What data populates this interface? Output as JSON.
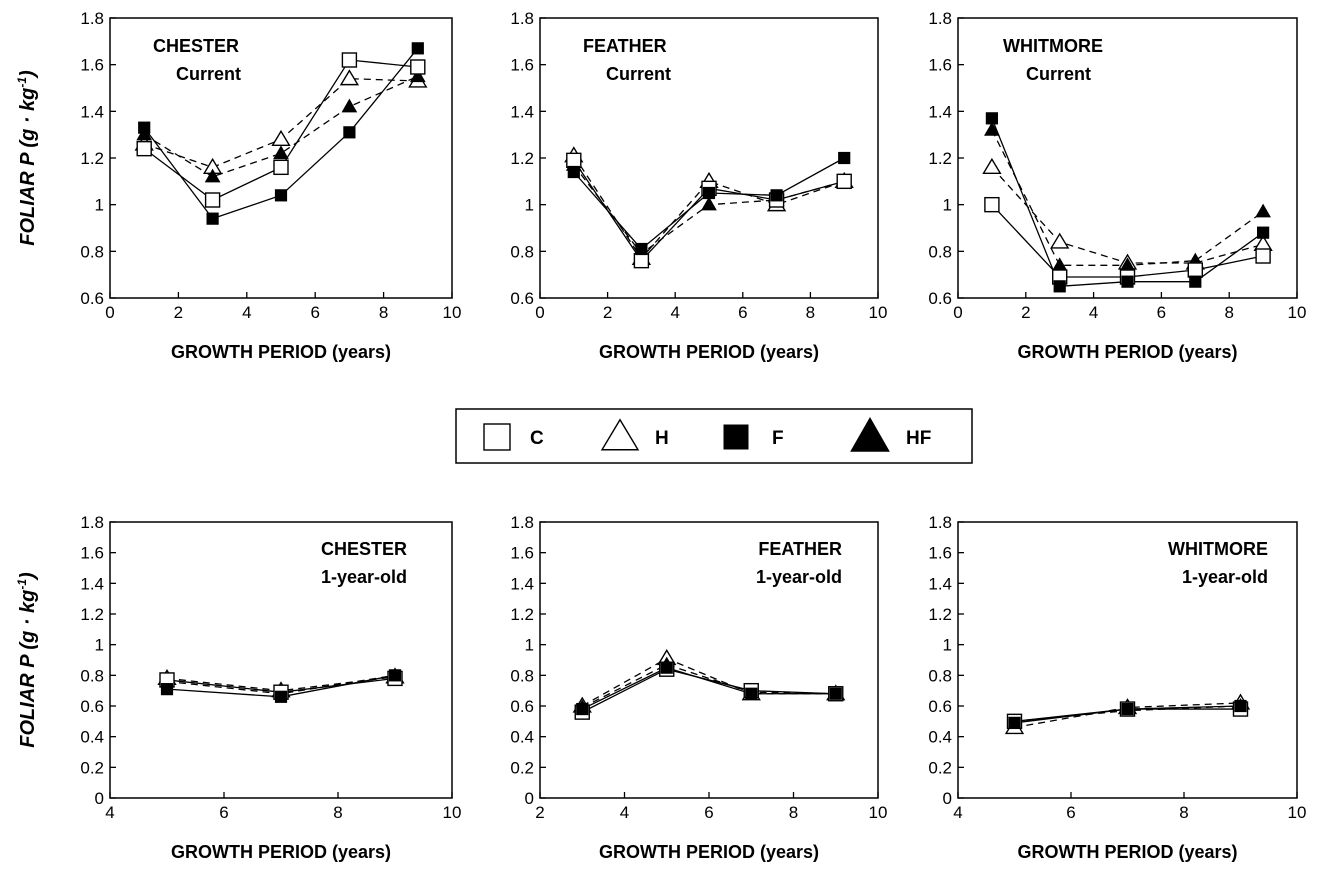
{
  "legend": {
    "entries": [
      {
        "key": "C",
        "label": "C",
        "marker": "square-open"
      },
      {
        "key": "H",
        "label": "H",
        "marker": "triangle-open"
      },
      {
        "key": "F",
        "label": "F",
        "marker": "square-filled"
      },
      {
        "key": "HF",
        "label": "HF",
        "marker": "triangle-filled"
      }
    ]
  },
  "ylabel_main": "FOLIAR P (g · kg",
  "ylabel_sup": "-1",
  "ylabel_tail": ")",
  "chart_data": [
    {
      "type": "line",
      "title": "CHESTER",
      "subtitle": "Current",
      "xlabel": "GROWTH PERIOD (years)",
      "ylabel": "FOLIAR P (g · kg-1)",
      "xlim": [
        0,
        10
      ],
      "ylim": [
        0.6,
        1.8
      ],
      "xticks": [
        0,
        2,
        4,
        6,
        8,
        10
      ],
      "yticks": [
        0.6,
        0.8,
        1,
        1.2,
        1.4,
        1.6,
        1.8
      ],
      "x": [
        1,
        3,
        5,
        7,
        9
      ],
      "series": [
        {
          "name": "C",
          "values": [
            1.24,
            1.02,
            1.16,
            1.62,
            1.59
          ]
        },
        {
          "name": "H",
          "values": [
            1.26,
            1.16,
            1.28,
            1.54,
            1.53
          ]
        },
        {
          "name": "F",
          "values": [
            1.33,
            0.94,
            1.04,
            1.31,
            1.67
          ]
        },
        {
          "name": "HF",
          "values": [
            1.3,
            1.12,
            1.22,
            1.42,
            1.55
          ]
        }
      ]
    },
    {
      "type": "line",
      "title": "FEATHER",
      "subtitle": "Current",
      "xlabel": "GROWTH PERIOD (years)",
      "ylabel": "FOLIAR P (g · kg-1)",
      "xlim": [
        0,
        10
      ],
      "ylim": [
        0.6,
        1.8
      ],
      "xticks": [
        0,
        2,
        4,
        6,
        8,
        10
      ],
      "yticks": [
        0.6,
        0.8,
        1,
        1.2,
        1.4,
        1.6,
        1.8
      ],
      "x": [
        1,
        3,
        5,
        7,
        9
      ],
      "series": [
        {
          "name": "C",
          "values": [
            1.19,
            0.76,
            1.07,
            1.02,
            1.1
          ]
        },
        {
          "name": "H",
          "values": [
            1.21,
            0.77,
            1.1,
            1.0,
            1.1
          ]
        },
        {
          "name": "F",
          "values": [
            1.14,
            0.81,
            1.05,
            1.04,
            1.2
          ]
        },
        {
          "name": "HF",
          "values": [
            1.17,
            0.79,
            1.0,
            1.02,
            1.1
          ]
        }
      ]
    },
    {
      "type": "line",
      "title": "WHITMORE",
      "subtitle": "Current",
      "xlabel": "GROWTH PERIOD (years)",
      "ylabel": "FOLIAR P (g · kg-1)",
      "xlim": [
        0,
        10
      ],
      "ylim": [
        0.6,
        1.8
      ],
      "xticks": [
        0,
        2,
        4,
        6,
        8,
        10
      ],
      "yticks": [
        0.6,
        0.8,
        1,
        1.2,
        1.4,
        1.6,
        1.8
      ],
      "x": [
        1,
        3,
        5,
        7,
        9
      ],
      "series": [
        {
          "name": "C",
          "values": [
            1.0,
            0.69,
            0.69,
            0.72,
            0.78
          ]
        },
        {
          "name": "H",
          "values": [
            1.16,
            0.84,
            0.75,
            0.75,
            0.83
          ]
        },
        {
          "name": "F",
          "values": [
            1.37,
            0.65,
            0.67,
            0.67,
            0.88
          ]
        },
        {
          "name": "HF",
          "values": [
            1.32,
            0.74,
            0.74,
            0.76,
            0.97
          ]
        }
      ]
    },
    {
      "type": "line",
      "title": "CHESTER",
      "subtitle": "1-year-old",
      "xlabel": "GROWTH PERIOD (years)",
      "ylabel": "FOLIAR P (g · kg-1)",
      "xlim": [
        4,
        10
      ],
      "ylim": [
        0,
        1.8
      ],
      "xticks": [
        4,
        6,
        8,
        10
      ],
      "yticks": [
        0,
        0.2,
        0.4,
        0.6,
        0.8,
        1,
        1.2,
        1.4,
        1.6,
        1.8
      ],
      "x": [
        5,
        7,
        9
      ],
      "series": [
        {
          "name": "C",
          "values": [
            0.77,
            0.69,
            0.78
          ]
        },
        {
          "name": "H",
          "values": [
            0.78,
            0.7,
            0.79
          ]
        },
        {
          "name": "F",
          "values": [
            0.71,
            0.66,
            0.8
          ]
        },
        {
          "name": "HF",
          "values": [
            0.76,
            0.68,
            0.8
          ]
        }
      ]
    },
    {
      "type": "line",
      "title": "FEATHER",
      "subtitle": "1-year-old",
      "xlabel": "GROWTH PERIOD (years)",
      "ylabel": "FOLIAR P (g · kg-1)",
      "xlim": [
        2,
        10
      ],
      "ylim": [
        0,
        1.8
      ],
      "xticks": [
        2,
        4,
        6,
        8,
        10
      ],
      "yticks": [
        0,
        0.2,
        0.4,
        0.6,
        0.8,
        1,
        1.2,
        1.4,
        1.6,
        1.8
      ],
      "x": [
        3,
        5,
        7,
        9
      ],
      "series": [
        {
          "name": "C",
          "values": [
            0.56,
            0.84,
            0.7,
            0.68
          ]
        },
        {
          "name": "H",
          "values": [
            0.6,
            0.91,
            0.68,
            0.68
          ]
        },
        {
          "name": "F",
          "values": [
            0.58,
            0.85,
            0.68,
            0.68
          ]
        },
        {
          "name": "HF",
          "values": [
            0.59,
            0.87,
            0.69,
            0.68
          ]
        }
      ]
    },
    {
      "type": "line",
      "title": "WHITMORE",
      "subtitle": "1-year-old",
      "xlabel": "GROWTH PERIOD (years)",
      "ylabel": "FOLIAR P (g · kg-1)",
      "xlim": [
        4,
        10
      ],
      "ylim": [
        0,
        1.8
      ],
      "xticks": [
        4,
        6,
        8,
        10
      ],
      "yticks": [
        0,
        0.2,
        0.4,
        0.6,
        0.8,
        1,
        1.2,
        1.4,
        1.6,
        1.8
      ],
      "x": [
        5,
        7,
        9
      ],
      "series": [
        {
          "name": "C",
          "values": [
            0.5,
            0.58,
            0.58
          ]
        },
        {
          "name": "H",
          "values": [
            0.46,
            0.59,
            0.62
          ]
        },
        {
          "name": "F",
          "values": [
            0.49,
            0.58,
            0.6
          ]
        },
        {
          "name": "HF",
          "values": [
            0.5,
            0.57,
            0.6
          ]
        }
      ]
    }
  ]
}
